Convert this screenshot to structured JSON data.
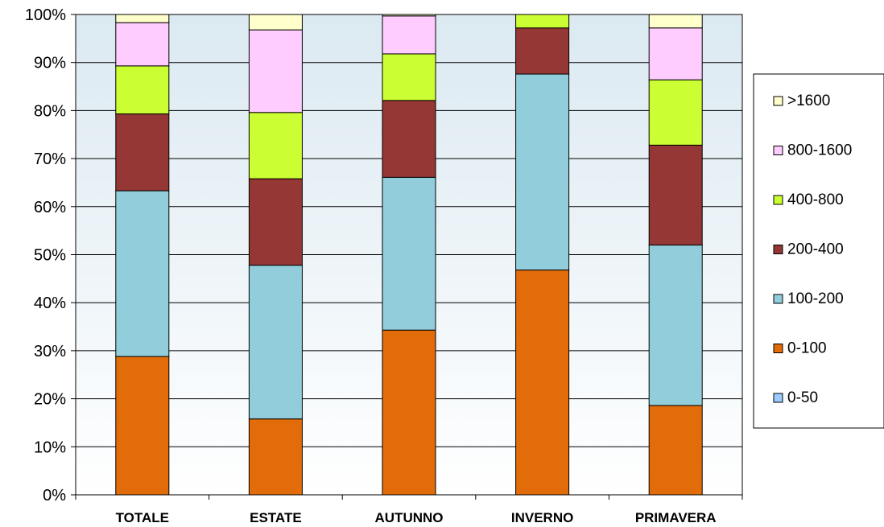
{
  "chart_data": {
    "type": "bar",
    "stacked": true,
    "percent": true,
    "categories": [
      "TOTALE",
      "ESTATE",
      "AUTUNNO",
      "INVERNO",
      "PRIMAVERA"
    ],
    "y_ticks": [
      "0%",
      "10%",
      "20%",
      "30%",
      "40%",
      "50%",
      "60%",
      "70%",
      "80%",
      "90%",
      "100%"
    ],
    "ylim": [
      0,
      100
    ],
    "grid": true,
    "legend_position": "right",
    "series": [
      {
        "name": "0-50",
        "color": "#99ccff",
        "values": [
          0,
          0,
          0,
          0,
          0
        ]
      },
      {
        "name": "0-100",
        "color": "#e36c0a",
        "values": [
          28.8,
          15.8,
          34.3,
          46.8,
          18.6
        ]
      },
      {
        "name": "100-200",
        "color": "#92cddc",
        "values": [
          34.5,
          32.0,
          31.8,
          40.8,
          33.4
        ]
      },
      {
        "name": "200-400",
        "color": "#953735",
        "values": [
          16.0,
          18.0,
          16.0,
          9.6,
          20.8
        ]
      },
      {
        "name": "400-800",
        "color": "#ccff33",
        "values": [
          10.0,
          13.8,
          9.7,
          2.8,
          13.6
        ]
      },
      {
        "name": "800-1600",
        "color": "#ffccff",
        "values": [
          9.0,
          17.2,
          7.9,
          0,
          10.8
        ]
      },
      {
        "name": ">1600",
        "color": "#ffffcc",
        "values": [
          1.7,
          3.2,
          0.3,
          0,
          2.8
        ]
      }
    ]
  }
}
